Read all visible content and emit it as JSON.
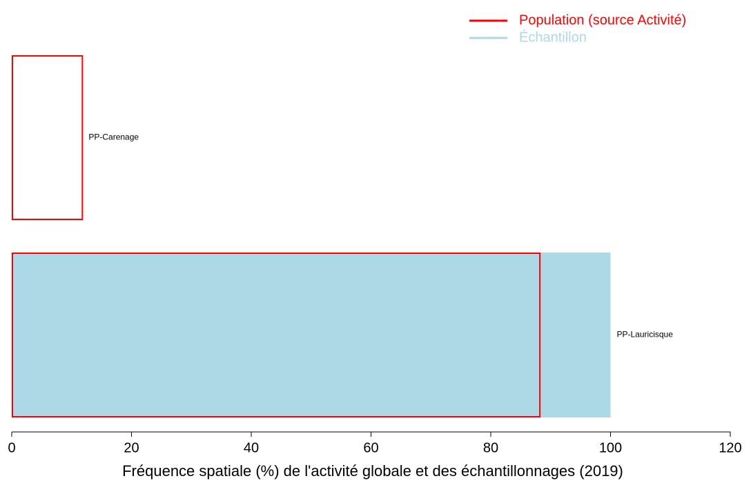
{
  "chart_data": {
    "type": "bar",
    "orientation": "horizontal",
    "x_label": "Fréquence spatiale (%) de l'activité globale et des échantillonnages (2019)",
    "categories": [
      "PP-Carenage",
      "PP-Lauricisque"
    ],
    "series": [
      {
        "name": "Échantillon",
        "color": "#add8e6",
        "style": "filled",
        "values": [
          0,
          100
        ]
      },
      {
        "name": "Population (source Activité)",
        "color": "#ff0000",
        "style": "outline",
        "values": [
          11.8,
          88.2
        ]
      }
    ],
    "xlim": [
      0,
      120
    ],
    "xticks": [
      0,
      20,
      40,
      60,
      80,
      100,
      120
    ],
    "legend": "top-right"
  }
}
